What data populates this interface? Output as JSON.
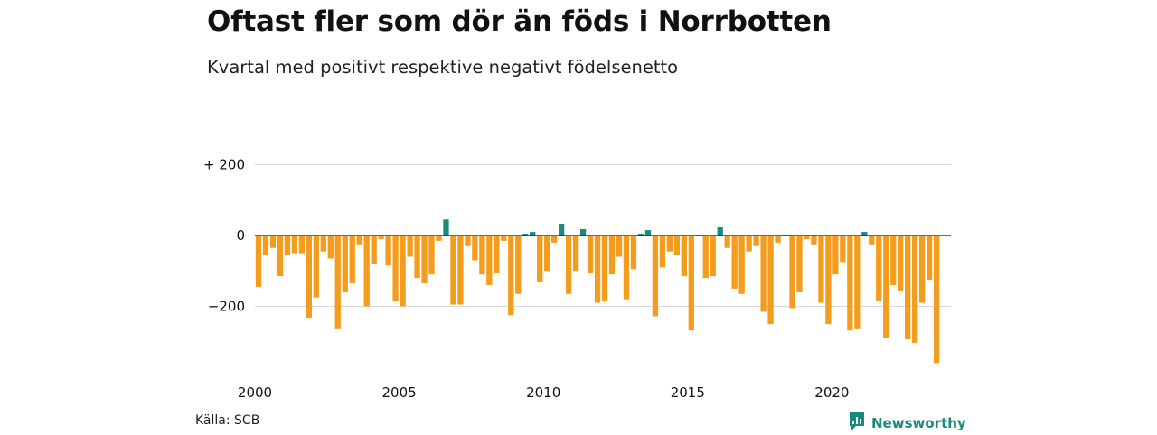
{
  "title": "Oftast fler som dör än föds i Norrbotten",
  "subtitle": "Kvartal med positivt respektive negativt födelsenetto",
  "source": "Källa: SCB",
  "brand": {
    "name": "Newsworthy",
    "icon": "newsworthy-logo-icon"
  },
  "colors": {
    "positive": "#1a8a80",
    "negative": "#f39c1e",
    "grid": "#d9d9d9",
    "zero": "#333333"
  },
  "chart_data": {
    "type": "bar",
    "ylim": [
      -360,
      200
    ],
    "y_ticks": [
      {
        "value": 200,
        "label": "+ 200"
      },
      {
        "value": 0,
        "label": "0"
      },
      {
        "value": -200,
        "label": "−200"
      }
    ],
    "x_ticks": [
      "2000",
      "2005",
      "2010",
      "2015",
      "2020"
    ],
    "start_year": 2000,
    "values": [
      -145,
      -55,
      -35,
      -115,
      -55,
      -50,
      -50,
      -232,
      -175,
      -45,
      -65,
      -262,
      -160,
      -135,
      -25,
      -200,
      -80,
      -10,
      -85,
      -185,
      -200,
      -60,
      -120,
      -135,
      -110,
      -15,
      45,
      -195,
      -195,
      -30,
      -70,
      -110,
      -140,
      -105,
      -15,
      -225,
      -165,
      5,
      10,
      -130,
      -100,
      -20,
      33,
      -165,
      -100,
      18,
      -105,
      -190,
      -185,
      -110,
      -60,
      -180,
      -95,
      5,
      15,
      -228,
      -90,
      -45,
      -55,
      -115,
      -268,
      0,
      -120,
      -115,
      25,
      -35,
      -150,
      -165,
      -45,
      -30,
      -215,
      -250,
      -20,
      0,
      -205,
      -160,
      -10,
      -25,
      -190,
      -250,
      -110,
      -75,
      -268,
      -262,
      10,
      -25,
      -185,
      -290,
      -140,
      -155,
      -293,
      -303,
      -190,
      -125,
      -360
    ]
  }
}
